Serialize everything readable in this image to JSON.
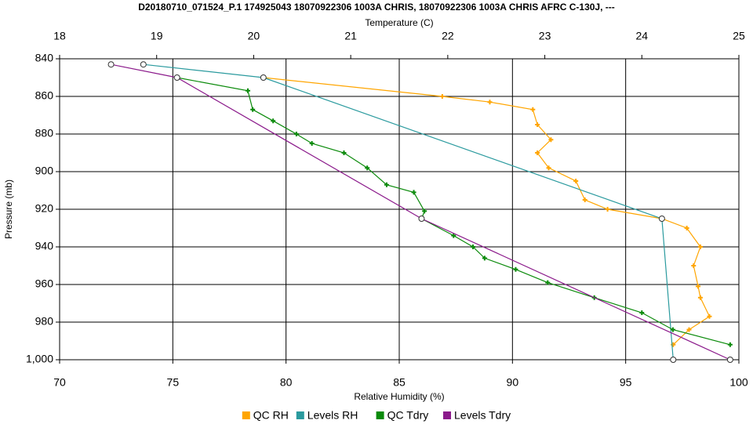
{
  "chart_data": {
    "type": "profile",
    "title": "D20180710_071524_P.1 174925043 18070922306 1003A CHRIS, 18070922306 1003A CHRIS AFRC C-130J, ---",
    "xlabel": "Relative Humidity (%)",
    "x2label": "Temperature (C)",
    "ylabel": "Pressure (mb)",
    "xlim": [
      70,
      100
    ],
    "xticks": [
      70,
      75,
      80,
      85,
      90,
      95,
      100
    ],
    "x2lim": [
      18,
      25
    ],
    "x2ticks": [
      18,
      19,
      20,
      21,
      22,
      23,
      24,
      25
    ],
    "ylim": [
      840,
      1000
    ],
    "y_inverted": true,
    "yticks": [
      840,
      860,
      880,
      900,
      920,
      940,
      960,
      980,
      {
        "value": 1000,
        "label": "1,000"
      }
    ],
    "grid": true,
    "legend": "bottom",
    "series": [
      {
        "name": "QC RH",
        "color": "#ffa500",
        "axis": "x",
        "marker": "plus",
        "x": [
          79.0,
          86.9,
          89.0,
          90.9,
          91.1,
          91.7,
          91.1,
          91.6,
          92.8,
          93.2,
          94.2,
          96.6,
          97.7,
          98.3,
          98.0,
          98.2,
          98.3,
          98.7,
          97.8,
          97.1
        ],
        "values": [
          850,
          860,
          863,
          867,
          875,
          883,
          890,
          898,
          905,
          915,
          920,
          925,
          930,
          940,
          950,
          961,
          967,
          977,
          984,
          992
        ]
      },
      {
        "name": "Levels RH",
        "color": "#2a9a9e",
        "axis": "x",
        "marker": "circle",
        "x": [
          73.7,
          79.0,
          96.6,
          97.1
        ],
        "values": [
          843,
          850,
          925,
          1000
        ]
      },
      {
        "name": "QC Tdry",
        "color": "#0a8a0a",
        "axis": "x2",
        "marker": "plus",
        "x": [
          19.21,
          19.94,
          19.99,
          20.2,
          20.44,
          20.6,
          20.93,
          21.17,
          21.37,
          21.65,
          21.76,
          21.73,
          22.06,
          22.26,
          22.38,
          22.7,
          23.03,
          23.51,
          24.0,
          24.32,
          24.91
        ],
        "values": [
          850,
          857,
          867,
          873,
          880,
          885,
          890,
          898,
          907,
          911,
          921,
          925,
          934,
          940,
          946,
          952,
          959,
          967,
          975,
          984,
          992
        ]
      },
      {
        "name": "Levels Tdry",
        "color": "#8b1a8b",
        "axis": "x2",
        "marker": "circle",
        "x": [
          18.53,
          19.21,
          21.73,
          24.91
        ],
        "values": [
          843,
          850,
          925,
          1000
        ]
      }
    ]
  }
}
